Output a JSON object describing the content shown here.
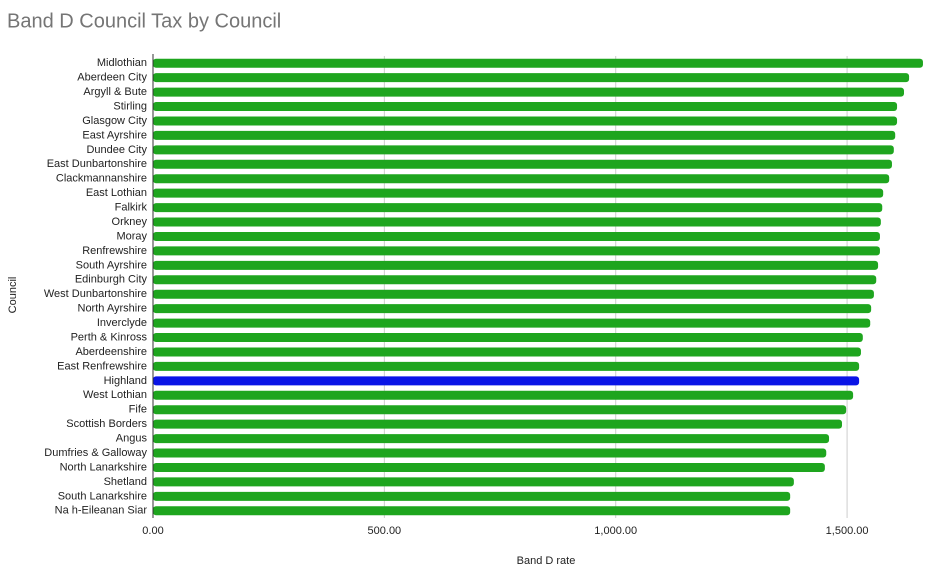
{
  "chart_data": {
    "type": "hbar",
    "title": "Band D Council Tax by Council",
    "x_label": "Band D rate",
    "y_label": "Council",
    "categories": [
      "Midlothian",
      "Aberdeen City",
      "Argyll & Bute",
      "Stirling",
      "Glasgow City",
      "East Ayrshire",
      "Dundee City",
      "East Dunbartonshire",
      "Clackmannanshire",
      "East Lothian",
      "Falkirk",
      "Orkney",
      "Moray",
      "Renfrewshire",
      "South Ayrshire",
      "Edinburgh City",
      "West Dunbartonshire",
      "North Ayrshire",
      "Inverclyde",
      "Perth & Kinross",
      "Aberdeenshire",
      "East Renfrewshire",
      "Highland",
      "West Lothian",
      "Fife",
      "Scottish Borders",
      "Angus",
      "Dumfries & Galloway",
      "North Lanarkshire",
      "Shetland",
      "South Lanarkshire",
      "Na h-Eileanan Siar"
    ],
    "values": [
      1664,
      1634,
      1623,
      1608,
      1608,
      1604,
      1601,
      1597,
      1591,
      1578,
      1576,
      1573,
      1571,
      1571,
      1567,
      1563,
      1558,
      1552,
      1550,
      1534,
      1530,
      1526,
      1526,
      1513,
      1498,
      1489,
      1461,
      1455,
      1452,
      1385,
      1377,
      1377
    ],
    "colors": [
      "#1ea51e",
      "#1ea51e",
      "#1ea51e",
      "#1ea51e",
      "#1ea51e",
      "#1ea51e",
      "#1ea51e",
      "#1ea51e",
      "#1ea51e",
      "#1ea51e",
      "#1ea51e",
      "#1ea51e",
      "#1ea51e",
      "#1ea51e",
      "#1ea51e",
      "#1ea51e",
      "#1ea51e",
      "#1ea51e",
      "#1ea51e",
      "#1ea51e",
      "#1ea51e",
      "#1ea51e",
      "#0a14e6",
      "#1ea51e",
      "#1ea51e",
      "#1ea51e",
      "#1ea51e",
      "#1ea51e",
      "#1ea51e",
      "#1ea51e",
      "#1ea51e",
      "#1ea51e"
    ],
    "xlim": [
      0,
      1690
    ],
    "xticks": [
      {
        "value": 0,
        "label": "0.00"
      },
      {
        "value": 500,
        "label": "500.00"
      },
      {
        "value": 1000,
        "label": "1,000.00"
      },
      {
        "value": 1500,
        "label": "1,500.00"
      }
    ],
    "grid": true
  }
}
